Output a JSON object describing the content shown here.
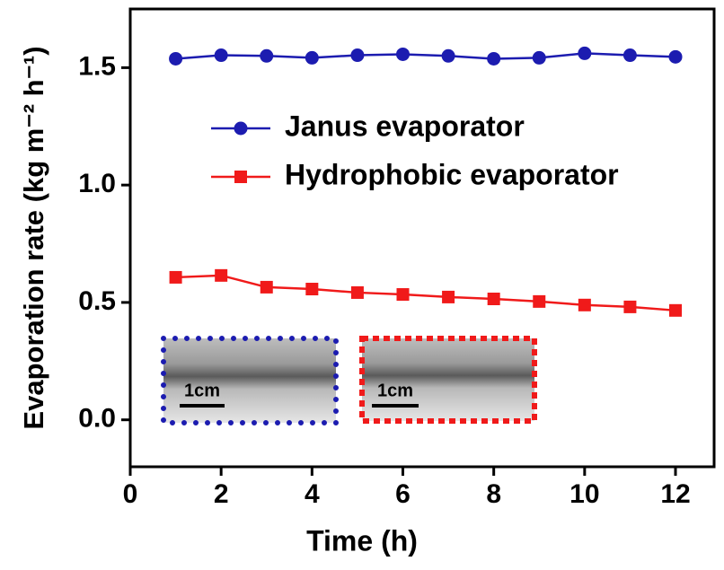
{
  "chart_data": {
    "type": "line",
    "x_label": "Time (h)",
    "y_label": "Evaporation rate (kg m⁻² h⁻¹)",
    "x": [
      1,
      2,
      3,
      4,
      5,
      6,
      7,
      8,
      9,
      10,
      11,
      12
    ],
    "series": [
      {
        "name": "Janus evaporator",
        "color": "#1c1cb0",
        "marker": "circle",
        "values": [
          1.538,
          1.553,
          1.55,
          1.542,
          1.553,
          1.557,
          1.55,
          1.538,
          1.542,
          1.561,
          1.553,
          1.546
        ]
      },
      {
        "name": "Hydrophobic evaporator",
        "color": "#f01a1a",
        "marker": "square",
        "values": [
          0.607,
          0.615,
          0.565,
          0.557,
          0.542,
          0.534,
          0.523,
          0.515,
          0.504,
          0.489,
          0.481,
          0.466
        ]
      }
    ],
    "xlim": [
      0,
      12.85
    ],
    "xticks": [
      0,
      2,
      4,
      6,
      8,
      10,
      12
    ],
    "ylim": [
      -0.2,
      1.75
    ],
    "yticks": [
      {
        "value": 0,
        "label": "0.0"
      },
      0.5,
      {
        "value": 1,
        "label": "1.0"
      },
      1.5
    ],
    "legend": "upper center",
    "annotations": [
      "1cm",
      "1cm"
    ]
  }
}
